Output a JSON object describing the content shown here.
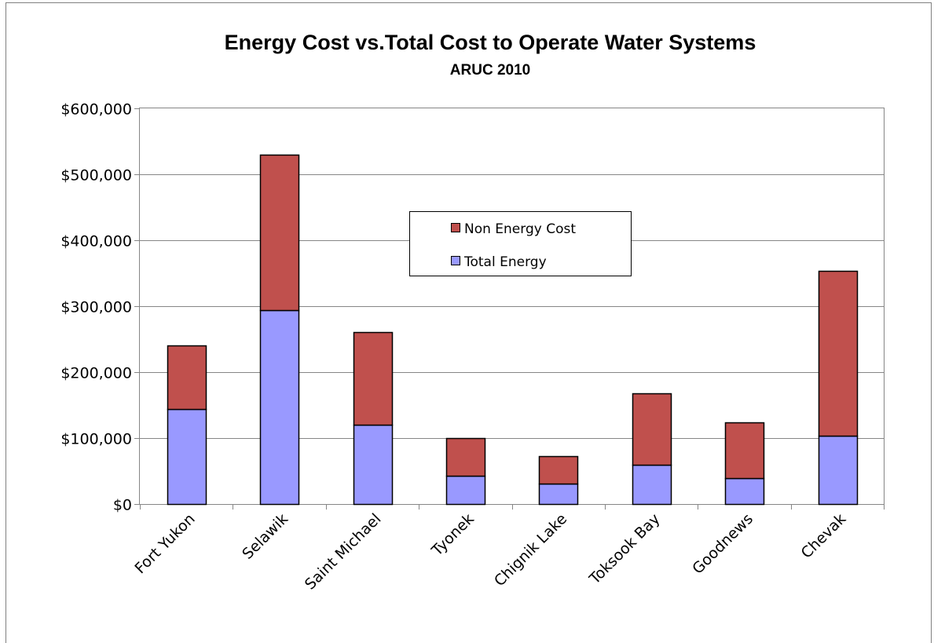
{
  "chart_data": {
    "type": "bar",
    "stacked": true,
    "title": "Energy Cost vs.Total Cost to Operate Water Systems",
    "subtitle": "ARUC 2010",
    "xlabel": "",
    "ylabel": "",
    "ylim": [
      0,
      600000
    ],
    "yticks": [
      0,
      100000,
      200000,
      300000,
      400000,
      500000,
      600000
    ],
    "ytick_labels": [
      "$0",
      "$100,000",
      "$200,000",
      "$300,000",
      "$400,000",
      "$500,000",
      "$600,000"
    ],
    "grid": true,
    "legend_position": "center",
    "categories": [
      "Fort Yukon",
      "Selawik",
      "Saint Michael",
      "Tyonek",
      "Chignik Lake",
      "Toksook Bay",
      "Goodnews",
      "Chevak"
    ],
    "series": [
      {
        "name": "Total Energy",
        "color": "#9999ff",
        "values": [
          144000,
          294000,
          120000,
          43000,
          31000,
          59000,
          39000,
          104000
        ]
      },
      {
        "name": "Non Energy Cost",
        "color": "#c0504d",
        "values": [
          96000,
          236000,
          141000,
          57000,
          42000,
          109000,
          85000,
          249000
        ]
      }
    ],
    "legend_order": [
      "Non Energy Cost",
      "Total Energy"
    ]
  }
}
